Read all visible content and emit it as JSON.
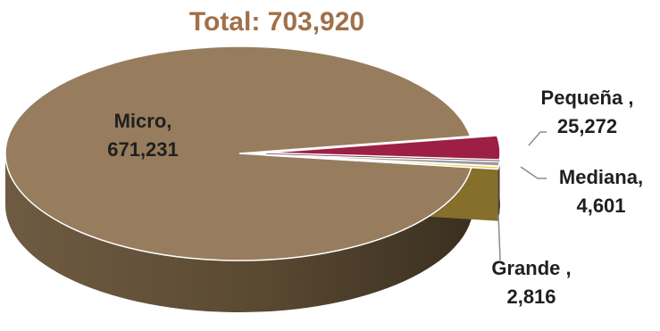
{
  "chart_data": {
    "type": "pie",
    "title": "Total: 703,920",
    "slices": [
      {
        "category": "Micro,",
        "value_label": "671,231",
        "value": 671231,
        "color": "#977d5e"
      },
      {
        "category": "Pequeña ,",
        "value_label": "25,272",
        "value": 25272,
        "color": "#9e1f45"
      },
      {
        "category": "Mediana,",
        "value_label": "4,601",
        "value": 4601,
        "color": "#9a9da0"
      },
      {
        "category": "Grande ,",
        "value_label": "2,816",
        "value": 2816,
        "color": "#f2c94f"
      }
    ],
    "legend": "none",
    "style": "3d-exploded"
  }
}
